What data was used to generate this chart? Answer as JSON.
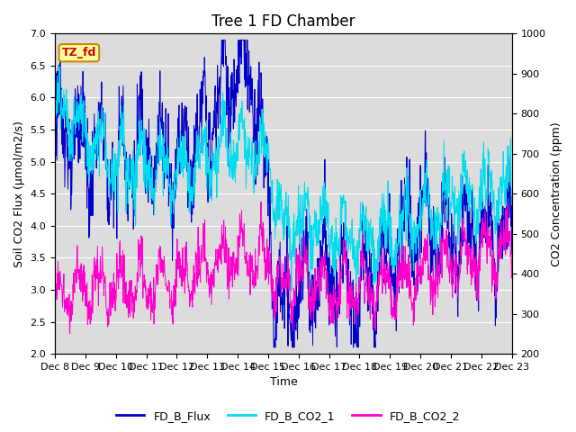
{
  "title": "Tree 1 FD Chamber",
  "xlabel": "Time",
  "ylabel_left": "Soil CO2 Flux (μmol/m2/s)",
  "ylabel_right": "CO2 Concentration (ppm)",
  "ylim_left": [
    2.0,
    7.0
  ],
  "ylim_right": [
    200,
    1000
  ],
  "xtick_labels": [
    "Dec 8",
    "Dec 9",
    "Dec 10",
    "Dec 11",
    "Dec 12",
    "Dec 13",
    "Dec 14",
    "Dec 15",
    "Dec 16",
    "Dec 17",
    "Dec 18",
    "Dec 19",
    "Dec 20",
    "Dec 21",
    "Dec 22",
    "Dec 23"
  ],
  "color_flux": "#0000CC",
  "color_co2_1": "#00DDEE",
  "color_co2_2": "#FF00CC",
  "legend_labels": [
    "FD_B_Flux",
    "FD_B_CO2_1",
    "FD_B_CO2_2"
  ],
  "annotation_text": "TZ_fd",
  "annotation_box_facecolor": "#FFFFA0",
  "annotation_box_edgecolor": "#CC8800",
  "annotation_text_color": "#CC0000",
  "background_color": "#DCDCDC",
  "title_fontsize": 12,
  "label_fontsize": 9,
  "tick_fontsize": 8,
  "legend_fontsize": 9,
  "linewidth": 0.7
}
